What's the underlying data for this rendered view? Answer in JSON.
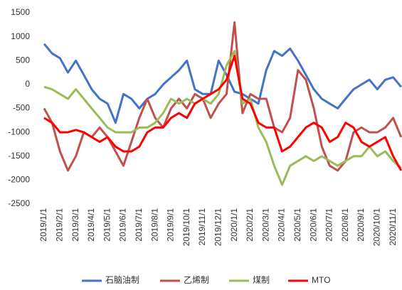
{
  "chart_data": {
    "type": "line",
    "categories": [
      "2019/1/1",
      null,
      "2019/2/1",
      null,
      "2019/3/1",
      null,
      "2019/4/1",
      null,
      "2019/5/1",
      null,
      "2019/6/1",
      null,
      "2019/7/1",
      null,
      "2019/8/1",
      null,
      "2019/9/1",
      null,
      "2019/10/1",
      null,
      "2019/11/1",
      null,
      "2019/12/1",
      null,
      "2020/1/1",
      null,
      "2020/2/1",
      null,
      "2020/3/1",
      null,
      "2020/4/1",
      null,
      "2020/5/1",
      null,
      "2020/6/1",
      null,
      "2020/7/1",
      null,
      "2020/8/1",
      null,
      "2020/9/1",
      null,
      "2020/10/1",
      null,
      "2020/11/1",
      null
    ],
    "series": [
      {
        "name": "石脑油制",
        "color": "#4472c4",
        "values": [
          850,
          650,
          550,
          250,
          500,
          200,
          -100,
          -300,
          -400,
          -800,
          -200,
          -300,
          -500,
          -300,
          -200,
          0,
          150,
          300,
          500,
          -100,
          -200,
          -200,
          500,
          200,
          -150,
          -200,
          -300,
          -400,
          300,
          700,
          600,
          750,
          500,
          200,
          -100,
          -300,
          -400,
          -500,
          -300,
          -100,
          0,
          100,
          -100,
          100,
          150,
          -50
        ]
      },
      {
        "name": "乙烯制",
        "color": "#c0504d",
        "values": [
          -500,
          -800,
          -1400,
          -1800,
          -1500,
          -1000,
          -1100,
          -900,
          -1100,
          -1400,
          -1700,
          -1200,
          -700,
          -300,
          -700,
          -900,
          -500,
          -300,
          -500,
          -200,
          -300,
          -700,
          -400,
          -200,
          1300,
          -600,
          -200,
          -300,
          -300,
          -900,
          -1000,
          -700,
          300,
          100,
          -500,
          -1300,
          -1700,
          -1800,
          -1600,
          -1000,
          -900,
          -1000,
          -1000,
          -900,
          -700,
          -1100
        ]
      },
      {
        "name": "煤制",
        "color": "#9bbb59",
        "values": [
          -50,
          -100,
          -200,
          -300,
          -100,
          -300,
          -500,
          -700,
          -900,
          -1000,
          -1000,
          -1000,
          -900,
          -900,
          -800,
          -600,
          -300,
          -400,
          -300,
          -400,
          -300,
          -400,
          -200,
          400,
          700,
          -400,
          -300,
          -900,
          -1200,
          -1700,
          -2100,
          -1700,
          -1600,
          -1500,
          -1600,
          -1500,
          -1600,
          -1700,
          -1600,
          -1500,
          -1500,
          -1300,
          -1500,
          -1400,
          -1600,
          -1750
        ]
      },
      {
        "name": "MTO",
        "color": "#ff0000",
        "values": [
          -700,
          -800,
          -1000,
          -1000,
          -950,
          -1000,
          -1100,
          -1200,
          -1100,
          -1300,
          -1400,
          -1400,
          -1300,
          -1000,
          -900,
          -900,
          -700,
          -600,
          -700,
          -400,
          -300,
          -200,
          -100,
          100,
          600,
          -300,
          -400,
          -800,
          -900,
          -900,
          -1400,
          -1300,
          -1100,
          -900,
          -800,
          -900,
          -1200,
          -1100,
          -800,
          -900,
          -1200,
          -1300,
          -1200,
          -1100,
          -1500,
          -1800
        ]
      }
    ],
    "ylim": [
      -2500,
      1500
    ],
    "yticks": [
      -2500,
      -2000,
      -1500,
      -1000,
      -500,
      0,
      500,
      1000,
      1500
    ],
    "grid": false,
    "legend": "bottom"
  }
}
